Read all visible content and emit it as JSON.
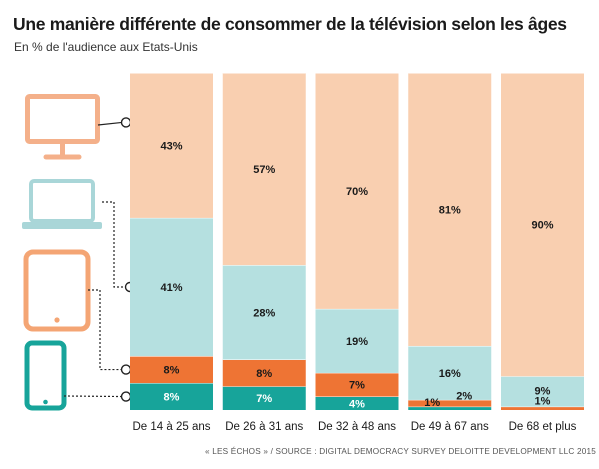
{
  "title": "Une manière différente de consommer de la télévision selon les âges",
  "subtitle": "En % de l'audience aux Etats-Unis",
  "source": "« LES ÉCHOS » / SOURCE : DIGITAL DEMOCRACY SURVEY DELOITTE DEVELOPMENT LLC 2015",
  "icons": [
    "television-icon",
    "laptop-icon",
    "tablet-icon",
    "smartphone-icon"
  ],
  "colors": {
    "television": "#f9cfb0",
    "laptop": "#b5e0e0",
    "tablet": "#ee7434",
    "smartphone": "#17a49a"
  },
  "chart_data": {
    "type": "bar",
    "stacked": true,
    "orientation": "vertical",
    "categories": [
      "De 14 à 25 ans",
      "De 26 à 31 ans",
      "De 32 à 48 ans",
      "De 49 à 67 ans",
      "De 68 et plus"
    ],
    "series": [
      {
        "key": "smartphone",
        "values": [
          8,
          7,
          4,
          1,
          0
        ],
        "labels": [
          "8%",
          "7%",
          "4%",
          "1%",
          ""
        ]
      },
      {
        "key": "tablet",
        "values": [
          8,
          8,
          7,
          2,
          1
        ],
        "labels": [
          "8%",
          "8%",
          "7%",
          "2%",
          "1%"
        ]
      },
      {
        "key": "laptop",
        "values": [
          41,
          28,
          19,
          16,
          9
        ],
        "labels": [
          "41%",
          "28%",
          "19%",
          "16%",
          "9%"
        ]
      },
      {
        "key": "television",
        "values": [
          43,
          57,
          70,
          81,
          90
        ],
        "labels": [
          "43%",
          "57%",
          "70%",
          "81%",
          "90%"
        ]
      }
    ],
    "ylim": [
      0,
      100
    ],
    "grid": false,
    "legend": "left"
  }
}
